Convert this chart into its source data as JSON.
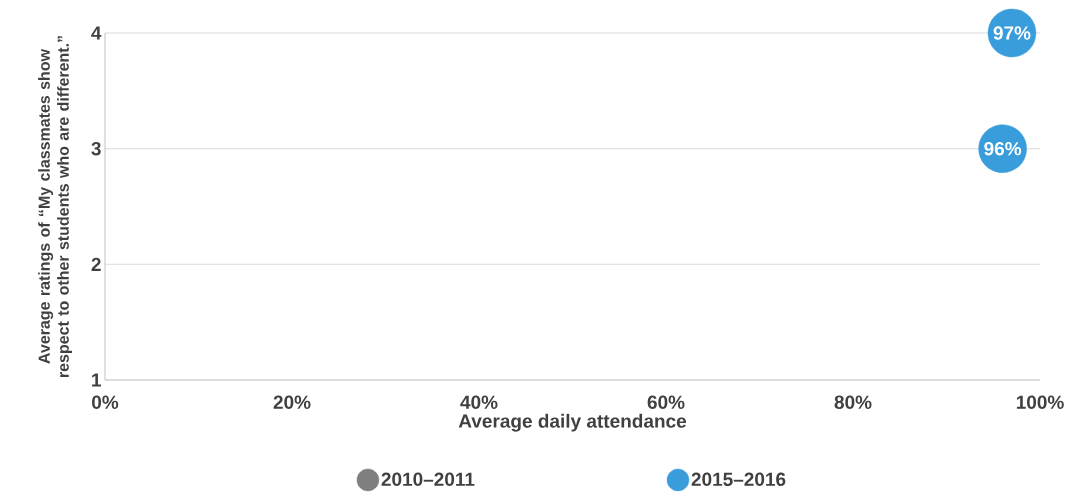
{
  "chart_data": {
    "type": "scatter",
    "xlabel": "Average daily attendance",
    "ylabel": "Average ratings of  “My classmates show respect to other students who are different.”",
    "xlim": [
      0,
      100
    ],
    "xticks": [
      {
        "value": 0,
        "label": "0%"
      },
      {
        "value": 20,
        "label": "20%"
      },
      {
        "value": 40,
        "label": "40%"
      },
      {
        "value": 60,
        "label": "60%"
      },
      {
        "value": 80,
        "label": "80%"
      },
      {
        "value": 100,
        "label": "100%"
      }
    ],
    "ylim": [
      1,
      4
    ],
    "yticks": [
      1,
      2,
      3,
      4
    ],
    "grid": "y",
    "legend": "bottom",
    "series": [
      {
        "name": "2010–2011",
        "color": "#7f7f7f"
      },
      {
        "name": "2015–2016",
        "color": "#3a9ddb",
        "x": [
          97,
          96
        ],
        "values": [
          4,
          3
        ]
      }
    ],
    "annotations": [
      {
        "text": "97%",
        "x": 97,
        "y": 4
      },
      {
        "text": "96%",
        "x": 96,
        "y": 3
      }
    ]
  }
}
